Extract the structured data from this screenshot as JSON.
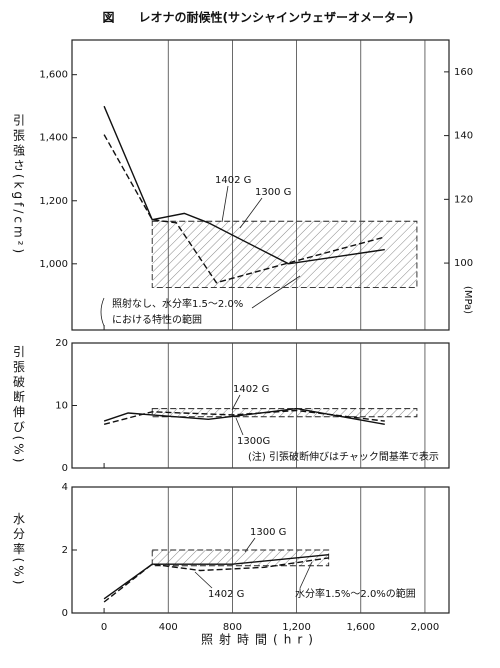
{
  "chart_data": [
    {
      "type": "line",
      "title": "図　　レオナの耐候性(サンシャインウェザーオメーター)",
      "ylabel": "引張強さ(kgf/cm²)",
      "y2label": "(MPa)",
      "xlim": [
        -200,
        2150
      ],
      "xticks": [
        0,
        400,
        800,
        1200,
        1600,
        2000
      ],
      "grid": "x",
      "ylim": [
        790,
        1710
      ],
      "yticks": [
        {
          "value": 1000,
          "label": "1,000"
        },
        {
          "value": 1200,
          "label": "1,200"
        },
        {
          "value": 1400,
          "label": "1,400"
        },
        {
          "value": 1600,
          "label": "1,600"
        }
      ],
      "y2lim": [
        79,
        170
      ],
      "y2ticks": [
        100,
        120,
        140,
        160
      ],
      "series": [
        {
          "name": "1300 G",
          "color": "#111111",
          "style": "solid",
          "x": [
            0,
            300,
            500,
            650,
            1150,
            1750
          ],
          "values": [
            1500,
            1140,
            1160,
            1130,
            1000,
            1045
          ]
        },
        {
          "name": "1402 G",
          "color": "#111111",
          "style": "dashed",
          "x": [
            0,
            300,
            450,
            700,
            1200,
            1750
          ],
          "values": [
            1410,
            1140,
            1130,
            940,
            1010,
            1085
          ]
        }
      ],
      "band": {
        "x": [
          300,
          1950
        ],
        "y": [
          925,
          1135
        ]
      },
      "annotations": [
        "1402 G",
        "1300 G",
        "照射なし、水分率1.5～2.0%",
        "における特性の範囲"
      ]
    },
    {
      "type": "line",
      "ylabel": "引張破断伸び(%)",
      "xlim": [
        -200,
        2150
      ],
      "xticks": [
        0,
        400,
        800,
        1200,
        1600,
        2000
      ],
      "grid": "x",
      "ylim": [
        0,
        20
      ],
      "yticks": [
        0,
        10,
        20
      ],
      "series": [
        {
          "name": "1300G",
          "color": "#111111",
          "style": "solid",
          "x": [
            0,
            150,
            300,
            650,
            1200,
            1750
          ],
          "values": [
            7.5,
            8.8,
            8.5,
            7.8,
            9.5,
            7.0
          ]
        },
        {
          "name": "1402 G",
          "color": "#111111",
          "style": "dashed",
          "x": [
            0,
            300,
            800,
            1200,
            1750
          ],
          "values": [
            7.0,
            9.0,
            8.5,
            9.2,
            7.5
          ]
        }
      ],
      "band": {
        "x": [
          300,
          1950
        ],
        "y": [
          8.2,
          9.5
        ]
      },
      "annotations": [
        "1402 G",
        "1300G",
        "(注) 引張破断伸びはチャック間基準で表示"
      ]
    },
    {
      "type": "line",
      "ylabel": "水分率(%)",
      "xlabel": "照射時間(hr)",
      "xlim": [
        -200,
        2150
      ],
      "xticks": [
        0,
        400,
        800,
        {
          "value": 1200,
          "label": "1,200"
        },
        {
          "value": 1600,
          "label": "1,600"
        },
        {
          "value": 2000,
          "label": "2,000"
        }
      ],
      "grid": "x",
      "ylim": [
        0,
        4
      ],
      "yticks": [
        0,
        2,
        4
      ],
      "series": [
        {
          "name": "1300 G",
          "color": "#111111",
          "style": "solid",
          "x": [
            0,
            300,
            800,
            1400
          ],
          "values": [
            0.45,
            1.55,
            1.55,
            1.85
          ]
        },
        {
          "name": "1402 G",
          "color": "#111111",
          "style": "dashed",
          "x": [
            0,
            300,
            600,
            1000,
            1400
          ],
          "values": [
            0.35,
            1.55,
            1.35,
            1.45,
            1.75
          ]
        }
      ],
      "band": {
        "x": [
          300,
          1400
        ],
        "y": [
          1.5,
          2.0
        ]
      },
      "annotations": [
        "1300 G",
        "1402 G",
        "水分率1.5%～2.0%の範囲"
      ]
    }
  ]
}
